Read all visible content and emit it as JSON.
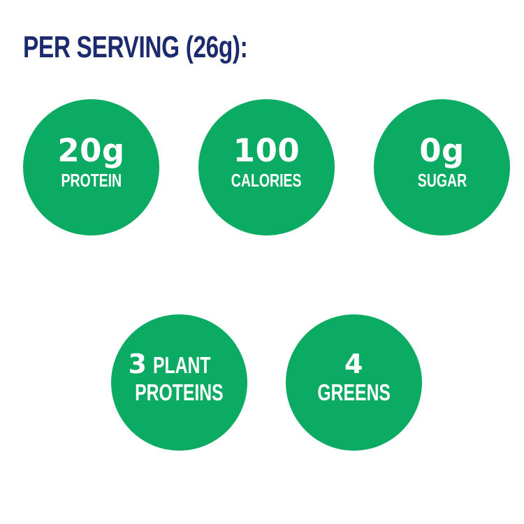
{
  "header": {
    "title": "PER SERVING (26g):"
  },
  "colors": {
    "circle_green": "#0BAB64",
    "heading_navy": "#1C2B6D",
    "circle_text": "#FFFFFF"
  },
  "stats": [
    {
      "id": "protein",
      "value": "20g",
      "label": "PROTEIN"
    },
    {
      "id": "calories",
      "value": "100",
      "label": "CALORIES"
    },
    {
      "id": "sugar",
      "value": "0g",
      "label": "SUGAR"
    },
    {
      "id": "plant-proteins",
      "value": "3",
      "inline_label": "PLANT",
      "label": "PROTEINS"
    },
    {
      "id": "greens",
      "value": "4",
      "label": "GREENS"
    }
  ]
}
